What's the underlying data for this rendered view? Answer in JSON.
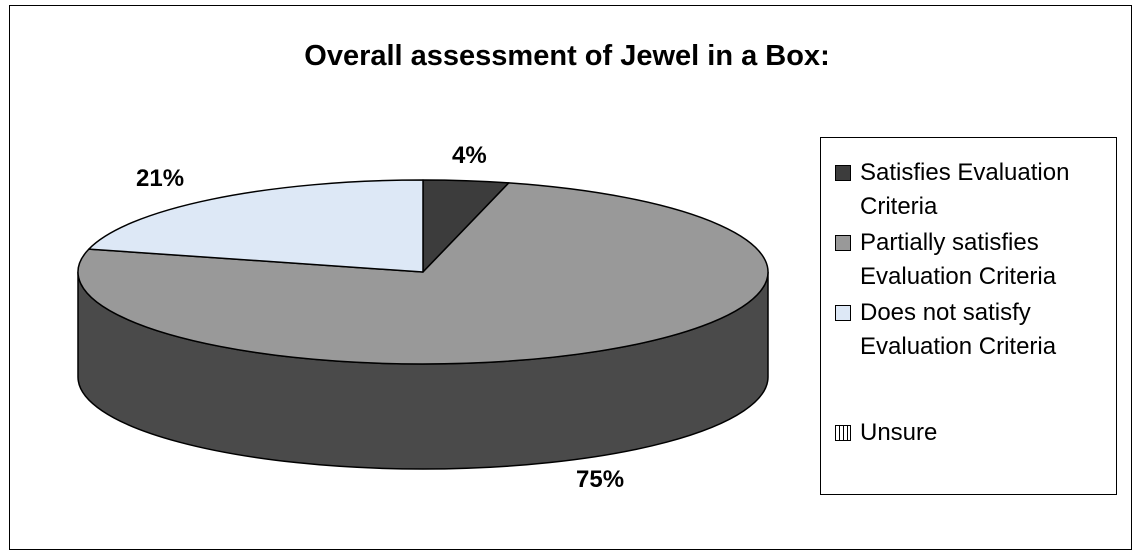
{
  "chart_data": {
    "type": "pie",
    "title": "Overall assessment of Jewel in a Box:",
    "legend_position": "right",
    "three_d": true,
    "slices": [
      {
        "name": "Satisfies Evaluation Criteria",
        "value": 4,
        "label": "4%",
        "color": "#3c3c3c"
      },
      {
        "name": "Partially satisfies Evaluation Criteria",
        "value": 75,
        "label": "75%",
        "color": "#999999"
      },
      {
        "name": "Does not satisfy Evaluation Criteria",
        "value": 21,
        "label": "21%",
        "color": "#dde8f6"
      },
      {
        "name": "Unsure",
        "value": 0,
        "label": "",
        "color": "#ffffff"
      }
    ],
    "side_color": "#4a4a4a"
  }
}
